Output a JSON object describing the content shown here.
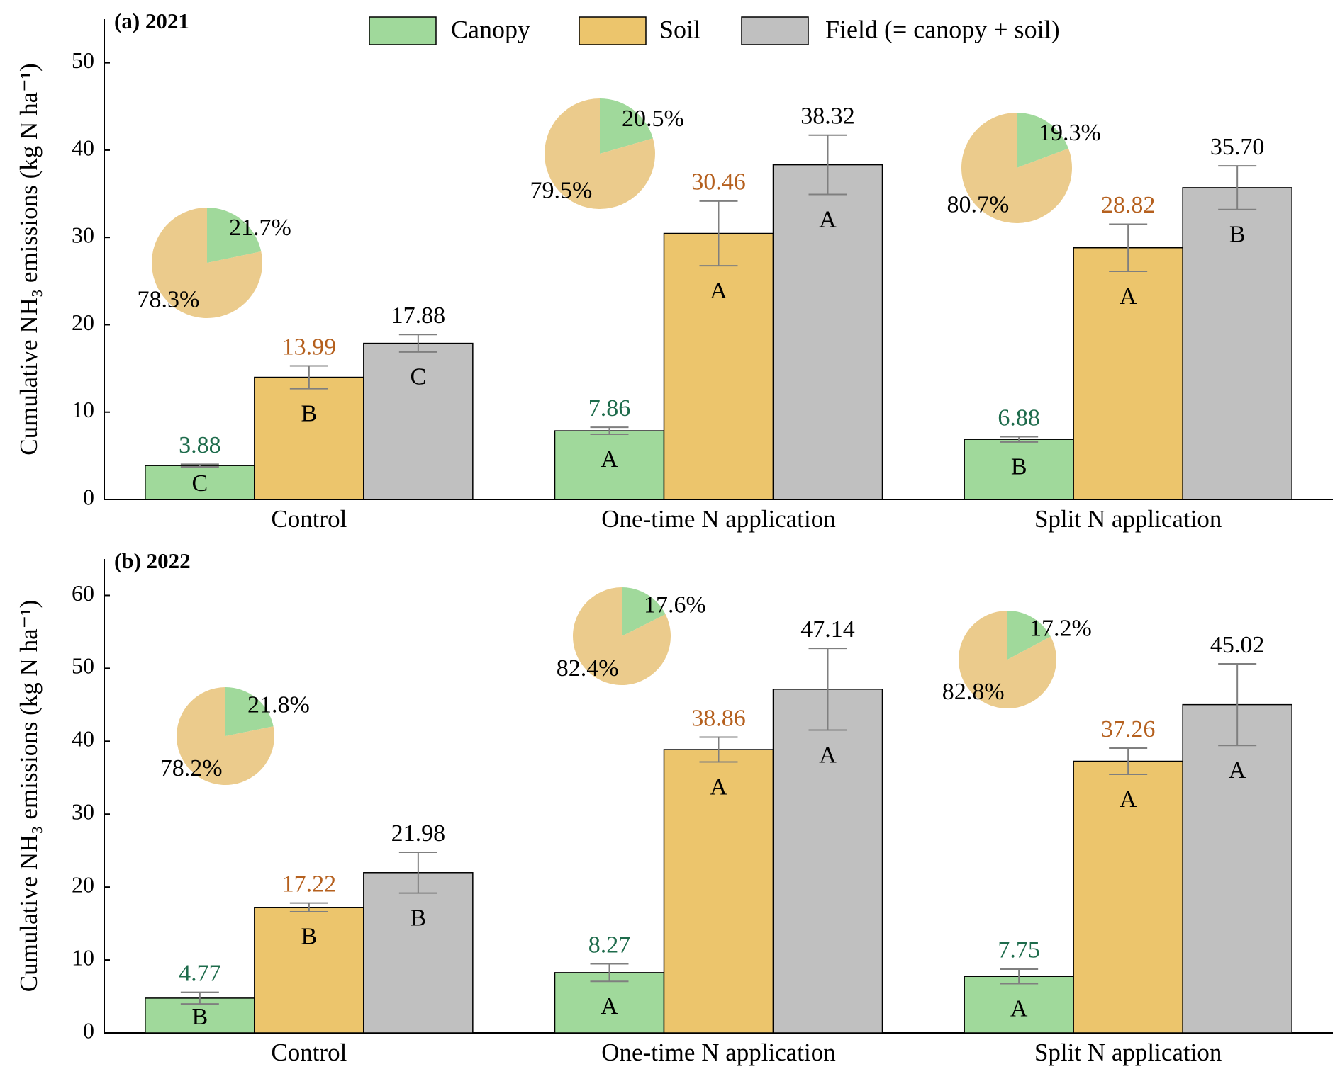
{
  "chart_data": [
    {
      "type": "bar",
      "title": "(a) 2021",
      "y_label": "Cumulative NH₃ emissions (kg N ha⁻¹)",
      "categories": [
        "Control",
        "One-time N application",
        "Split N application"
      ],
      "legend": "top",
      "ylim": [
        0,
        55
      ],
      "yticks": [
        0,
        10,
        20,
        30,
        40,
        50
      ],
      "series": [
        {
          "name": "Canopy",
          "color": "#a0d99b",
          "label_color": "#1d6b4b",
          "values": [
            3.88,
            7.86,
            6.88
          ],
          "value_labels": [
            "3.88",
            "7.86",
            "6.88"
          ],
          "errors": [
            0.15,
            0.4,
            0.3
          ],
          "letters": [
            "C",
            "A",
            "B"
          ]
        },
        {
          "name": "Soil",
          "color": "#ecc56c",
          "label_color": "#b5601e",
          "values": [
            13.99,
            30.46,
            28.82
          ],
          "value_labels": [
            "13.99",
            "30.46",
            "28.82"
          ],
          "errors": [
            1.3,
            3.7,
            2.7
          ],
          "letters": [
            "B",
            "A",
            "A"
          ]
        },
        {
          "name": "Field (= canopy + soil)",
          "color": "#c0c0c0",
          "label_color": "#000000",
          "values": [
            17.88,
            38.32,
            35.7
          ],
          "value_labels": [
            "17.88",
            "38.32",
            "35.70"
          ],
          "errors": [
            1.0,
            3.4,
            2.5
          ],
          "letters": [
            "C",
            "A",
            "B"
          ]
        }
      ],
      "pies": {
        "colors": [
          "#a0d99b",
          "#ebcb8c"
        ],
        "values": [
          [
            21.7,
            78.3
          ],
          [
            20.5,
            79.5
          ],
          [
            19.3,
            80.7
          ]
        ],
        "value_labels": [
          [
            "21.7%",
            "78.3%"
          ],
          [
            "20.5%",
            "79.5%"
          ],
          [
            "19.3%",
            "80.7%"
          ]
        ]
      }
    },
    {
      "type": "bar",
      "title": "(b) 2022",
      "y_label": "Cumulative NH₃ emissions (kg N ha⁻¹)",
      "categories": [
        "Control",
        "One-time N application",
        "Split N application"
      ],
      "ylim": [
        0,
        65
      ],
      "yticks": [
        0,
        10,
        20,
        30,
        40,
        50,
        60
      ],
      "series": [
        {
          "color": "#a0d99b",
          "label_color": "#1d6b4b",
          "values": [
            4.77,
            8.27,
            7.75
          ],
          "value_labels": [
            "4.77",
            "8.27",
            "7.75"
          ],
          "errors": [
            0.8,
            1.2,
            1.0
          ],
          "letters": [
            "B",
            "A",
            "A"
          ]
        },
        {
          "color": "#ecc56c",
          "label_color": "#b5601e",
          "values": [
            17.22,
            38.86,
            37.26
          ],
          "value_labels": [
            "17.22",
            "38.86",
            "37.26"
          ],
          "errors": [
            0.6,
            1.7,
            1.8
          ],
          "letters": [
            "B",
            "A",
            "A"
          ]
        },
        {
          "color": "#c0c0c0",
          "label_color": "#000000",
          "values": [
            21.98,
            47.14,
            45.02
          ],
          "value_labels": [
            "21.98",
            "47.14",
            "45.02"
          ],
          "errors": [
            2.8,
            5.6,
            5.6
          ],
          "letters": [
            "B",
            "A",
            "A"
          ]
        }
      ],
      "pies": {
        "colors": [
          "#a0d99b",
          "#ebcb8c"
        ],
        "values": [
          [
            21.8,
            78.2
          ],
          [
            17.6,
            82.4
          ],
          [
            17.2,
            82.8
          ]
        ],
        "value_labels": [
          [
            "21.8%",
            "78.2%"
          ],
          [
            "17.6%",
            "82.4%"
          ],
          [
            "17.2%",
            "82.8%"
          ]
        ]
      }
    }
  ]
}
